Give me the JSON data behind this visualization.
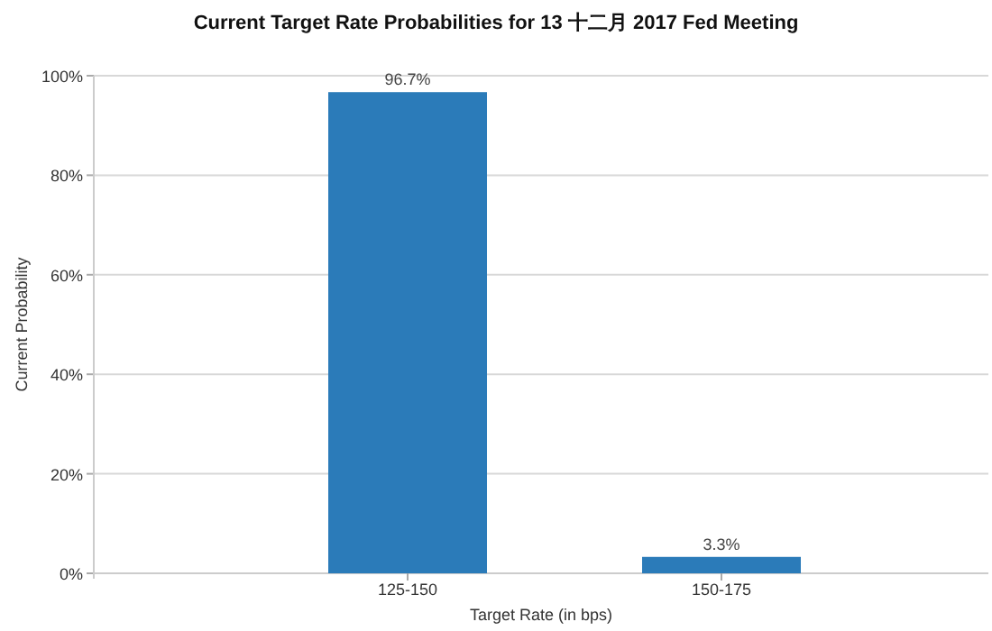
{
  "chart_data": {
    "type": "bar",
    "title": "Current Target Rate Probabilities for 13 十二月 2017  Fed Meeting",
    "xlabel": "Target Rate (in bps)",
    "ylabel": "Current Probability",
    "categories": [
      "125-150",
      "150-175"
    ],
    "values": [
      96.7,
      3.3
    ],
    "value_labels": [
      "96.7%",
      "3.3%"
    ],
    "color": "#2b7bb9",
    "ylim": [
      0,
      100
    ],
    "yticks": [
      {
        "value": 0,
        "label": "0%"
      },
      {
        "value": 20,
        "label": "20%"
      },
      {
        "value": 40,
        "label": "40%"
      },
      {
        "value": 60,
        "label": "60%"
      },
      {
        "value": 80,
        "label": "80%"
      },
      {
        "value": 100,
        "label": "100%"
      }
    ],
    "grid": "y"
  }
}
